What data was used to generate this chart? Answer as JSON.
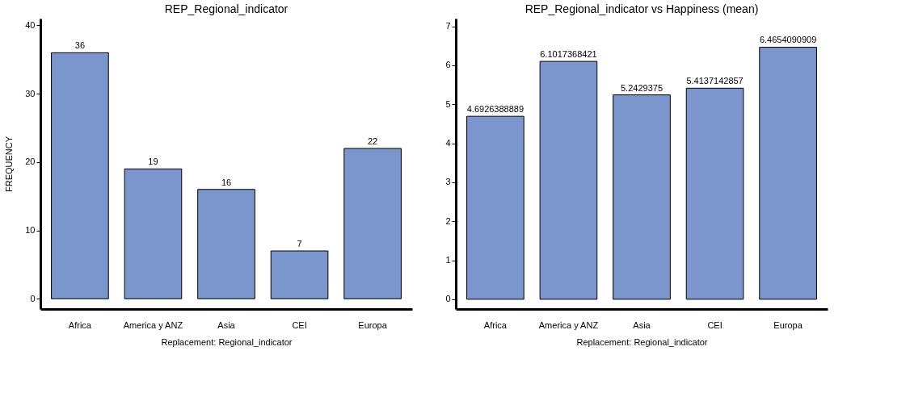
{
  "chart_data": [
    {
      "type": "bar",
      "title": "REP_Regional_indicator",
      "xlabel": "Replacement: Regional_indicator",
      "ylabel": "FREQUENCY",
      "categories": [
        "Africa",
        "America y ANZ",
        "Asia",
        "CEI",
        "Europa"
      ],
      "series": [
        {
          "color": "#7b96cc",
          "values": [
            36,
            19,
            16,
            7,
            22
          ]
        }
      ],
      "ylim": [
        -1.5,
        41
      ],
      "yticks": [
        0,
        10,
        20,
        30,
        40
      ],
      "data_labels": true,
      "grid": false,
      "legend": false
    },
    {
      "type": "bar",
      "title": "REP_Regional_indicator vs Happiness (mean)",
      "xlabel": "Replacement: Regional_indicator",
      "categories": [
        "Africa",
        "America y ANZ",
        "Asia",
        "CEI",
        "Europa"
      ],
      "series": [
        {
          "color": "#7b96cc",
          "values": [
            4.6926388889,
            6.1017368421,
            5.2429375,
            5.4137142857,
            6.4654090909
          ]
        }
      ],
      "ylim": [
        -0.25,
        7.2
      ],
      "yticks": [
        0,
        1,
        2,
        3,
        4,
        5,
        6,
        7
      ],
      "data_labels": true,
      "grid": false,
      "legend": false
    }
  ]
}
